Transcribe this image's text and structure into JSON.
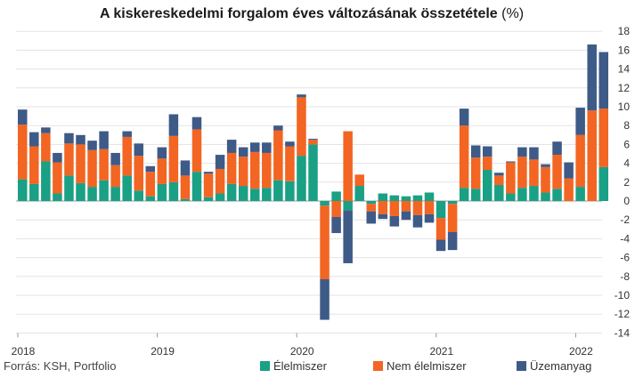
{
  "chart_data": {
    "type": "bar",
    "stacked": true,
    "title": "A kiskereskedelmi forgalom éves változásának összetétele",
    "title_unit": "(%)",
    "source": "Forrás: KSH, Portfolio",
    "x_tick_labels": [
      "2018",
      "2019",
      "2020",
      "2021",
      "2022"
    ],
    "y_ticks": [
      18,
      16,
      14,
      12,
      10,
      8,
      6,
      4,
      2,
      0,
      -2,
      -4,
      -6,
      -8,
      -10,
      -12,
      -14
    ],
    "ylim": [
      -14,
      18
    ],
    "y_axis_position": "right",
    "grid": true,
    "legend_position": "bottom",
    "series": [
      {
        "name": "Élelmiszer",
        "color": "#1aa085",
        "values": [
          2.3,
          1.8,
          4.2,
          0.8,
          2.7,
          1.9,
          1.5,
          2.2,
          1.5,
          2.7,
          1.1,
          0.5,
          1.8,
          2.0,
          0.2,
          3.1,
          0.4,
          0.8,
          1.8,
          1.6,
          1.3,
          1.4,
          2.2,
          2.1,
          4.8,
          6.0,
          -0.5,
          1.0,
          -1.0,
          1.6,
          -0.3,
          0.8,
          0.6,
          0.5,
          0.6,
          0.9,
          -1.8,
          -0.3,
          1.4,
          1.3,
          3.3,
          1.7,
          0.8,
          1.4,
          1.6,
          0.9,
          1.3,
          0.0,
          1.5,
          0.0,
          3.6
        ]
      },
      {
        "name": "Nem élelmiszer",
        "color": "#f26522",
        "values": [
          5.8,
          4.0,
          3.0,
          3.3,
          3.4,
          4.1,
          3.9,
          3.3,
          2.3,
          4.1,
          3.7,
          2.6,
          2.7,
          4.9,
          2.5,
          4.5,
          2.5,
          2.6,
          3.3,
          3.1,
          3.9,
          3.7,
          5.3,
          3.7,
          6.2,
          0.5,
          -7.8,
          -1.7,
          7.4,
          1.2,
          -0.8,
          -1.4,
          -1.6,
          -1.1,
          -1.5,
          -1.4,
          -2.3,
          -3.0,
          6.6,
          3.3,
          1.4,
          1.0,
          3.3,
          3.3,
          2.8,
          2.7,
          3.6,
          2.4,
          5.5,
          9.6,
          6.2
        ]
      },
      {
        "name": "Üzemanyag",
        "color": "#3e5a87",
        "values": [
          1.6,
          1.5,
          0.6,
          1.0,
          1.1,
          1.0,
          1.0,
          1.9,
          1.3,
          0.6,
          1.3,
          0.6,
          1.2,
          2.3,
          1.6,
          1.3,
          0.2,
          1.5,
          1.4,
          1.0,
          1.0,
          1.1,
          0.5,
          0.5,
          0.3,
          0.1,
          -4.3,
          -1.7,
          -5.6,
          0.0,
          -1.3,
          -0.5,
          -1.1,
          -0.9,
          -1.3,
          -0.9,
          -1.2,
          -1.9,
          1.8,
          1.3,
          1.1,
          0.3,
          0.1,
          1.0,
          1.3,
          0.3,
          1.4,
          1.7,
          2.9,
          7.0,
          6.0
        ]
      }
    ]
  }
}
